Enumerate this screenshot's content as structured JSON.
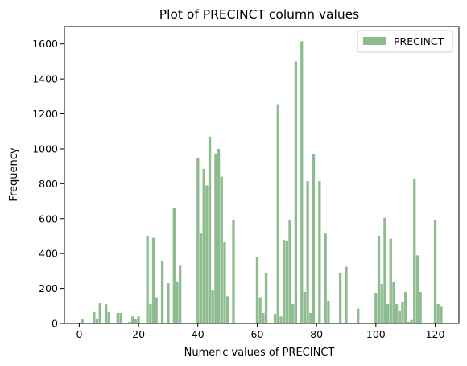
{
  "chart_data": {
    "type": "bar",
    "title": "Plot of PRECINCT column values",
    "xlabel": "Numeric values of PRECINCT",
    "ylabel": "Frequency",
    "xlim": [
      -5,
      128
    ],
    "ylim": [
      0,
      1700
    ],
    "xticks": [
      0,
      20,
      40,
      60,
      80,
      100,
      120
    ],
    "yticks": [
      0,
      200,
      400,
      600,
      800,
      1000,
      1200,
      1400,
      1600
    ],
    "legend": {
      "position": "top-right"
    },
    "bar_color": "#8fbc8f",
    "bin_width": 1,
    "series": [
      {
        "name": "PRECINCT",
        "x": [
          1,
          5,
          6,
          7,
          9,
          10,
          13,
          14,
          17,
          18,
          19,
          20,
          23,
          24,
          25,
          26,
          28,
          30,
          32,
          33,
          34,
          40,
          41,
          42,
          43,
          44,
          45,
          46,
          47,
          48,
          49,
          50,
          52,
          60,
          61,
          62,
          63,
          66,
          67,
          68,
          69,
          70,
          71,
          72,
          73,
          75,
          76,
          77,
          78,
          79,
          81,
          83,
          84,
          88,
          90,
          94,
          100,
          101,
          102,
          103,
          104,
          105,
          106,
          107,
          108,
          109,
          110,
          111,
          112,
          113,
          114,
          115,
          120,
          121,
          122
        ],
        "values": [
          25,
          65,
          28,
          115,
          110,
          65,
          60,
          60,
          10,
          40,
          25,
          40,
          500,
          110,
          490,
          150,
          355,
          230,
          660,
          240,
          330,
          945,
          515,
          885,
          790,
          1070,
          190,
          970,
          1000,
          840,
          465,
          155,
          595,
          380,
          150,
          60,
          290,
          55,
          1255,
          40,
          480,
          475,
          595,
          110,
          1500,
          1615,
          180,
          815,
          60,
          970,
          815,
          515,
          130,
          290,
          325,
          85,
          175,
          500,
          225,
          605,
          110,
          485,
          235,
          110,
          70,
          120,
          180,
          10,
          20,
          830,
          390,
          180,
          590,
          110,
          95
        ]
      }
    ]
  }
}
